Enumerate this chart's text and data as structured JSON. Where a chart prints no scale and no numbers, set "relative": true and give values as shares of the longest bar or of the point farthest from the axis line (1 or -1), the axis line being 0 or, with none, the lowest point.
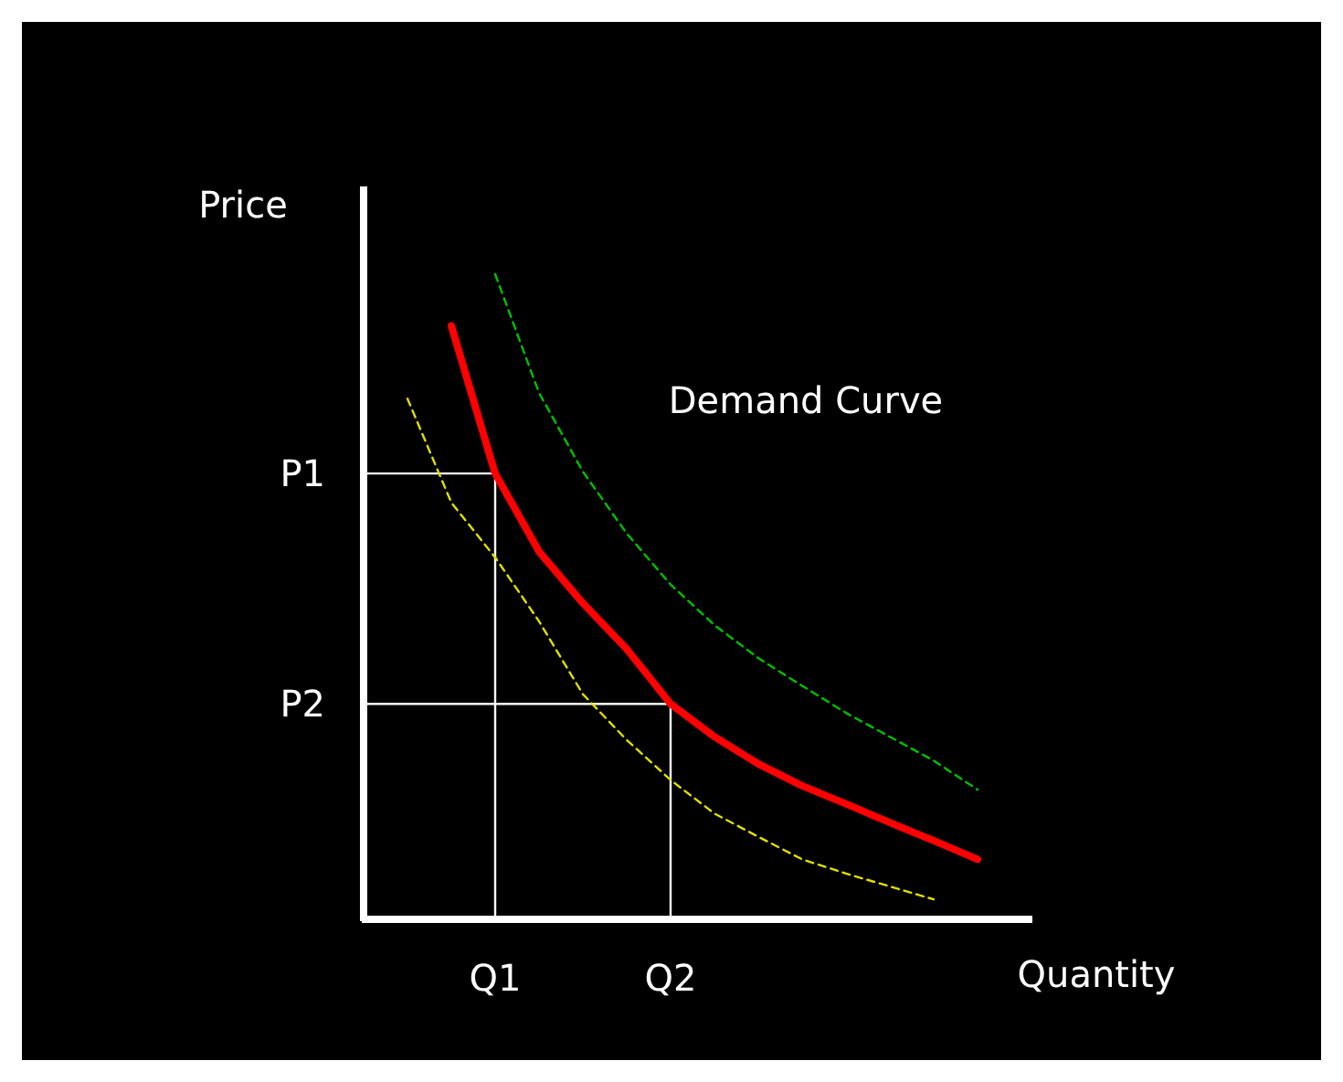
{
  "chart_data": {
    "type": "line",
    "relative": true,
    "xlabel": "Quantity",
    "ylabel": "Price",
    "annotations": [
      "Demand Curve"
    ],
    "marker": "none",
    "categories": [
      null,
      null,
      null,
      "Q1",
      null,
      null,
      null,
      "Q2",
      null,
      null,
      null,
      null,
      null,
      null,
      null,
      null
    ],
    "ref_lines": [
      {
        "axis": "y",
        "value": 0.691,
        "label": "P1",
        "color": "#ffffff"
      },
      {
        "axis": "y",
        "value": 0.334,
        "label": "P2",
        "color": "#ffffff"
      },
      {
        "axis": "x",
        "value": "Q1",
        "color": "#ffffff"
      },
      {
        "axis": "x",
        "value": "Q2",
        "color": "#ffffff"
      }
    ],
    "series": [
      {
        "color": "#00c000",
        "line_style": "dashed",
        "values": [
          null,
          null,
          null,
          1.0,
          0.816,
          0.694,
          0.598,
          0.519,
          0.456,
          0.405,
          0.362,
          0.32,
          0.283,
          0.246,
          0.201,
          null
        ]
      },
      {
        "color": "#ff0000",
        "line_style": "solid",
        "values": [
          null,
          null,
          0.92,
          0.691,
          0.57,
          0.49,
          0.419,
          0.334,
          0.283,
          0.241,
          0.207,
          0.179,
          0.15,
          0.122,
          0.093,
          null
        ]
      },
      {
        "color": "#e0e000",
        "line_style": "dashed",
        "values": [
          null,
          0.807,
          0.646,
          0.561,
          0.462,
          0.349,
          0.278,
          0.216,
          0.164,
          0.128,
          0.093,
          0.071,
          0.051,
          0.031,
          null,
          null
        ]
      }
    ]
  }
}
